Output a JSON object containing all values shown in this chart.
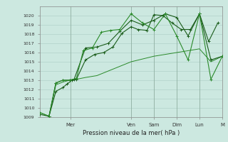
{
  "xlabel": "Pression niveau de la mer( hPa )",
  "background_color": "#cce8e0",
  "grid_color": "#aaccc4",
  "line_color_dark": "#1a5c1a",
  "line_color_light": "#2a8a2a",
  "ylim": [
    1009,
    1021
  ],
  "xlim": [
    0,
    8.0
  ],
  "yticks": [
    1009,
    1010,
    1011,
    1012,
    1013,
    1014,
    1015,
    1016,
    1017,
    1018,
    1019,
    1020
  ],
  "day_labels": [
    "",
    "Mer",
    "",
    "Ven",
    "Sam",
    "Dim",
    "Lun",
    "",
    "M"
  ],
  "day_positions": [
    0,
    1.33,
    2.67,
    4.0,
    5.0,
    6.0,
    7.0,
    7.5,
    8.0
  ],
  "series1_x": [
    0,
    0.4,
    0.7,
    1.0,
    1.2,
    1.4,
    1.6,
    2.0,
    2.4,
    2.8,
    3.2,
    3.6,
    4.0,
    4.3,
    4.7,
    5.0,
    5.4,
    5.8,
    6.2,
    6.6,
    7.0,
    7.4,
    7.8
  ],
  "series1_y": [
    1009.3,
    1009.1,
    1011.8,
    1012.2,
    1012.6,
    1013.0,
    1013.1,
    1015.2,
    1015.8,
    1016.0,
    1016.6,
    1018.1,
    1018.8,
    1018.5,
    1018.4,
    1020.1,
    1020.0,
    1019.2,
    1018.5,
    1018.5,
    1020.2,
    1017.2,
    1019.2
  ],
  "series2_x": [
    0,
    0.4,
    0.7,
    1.0,
    1.3,
    1.6,
    2.0,
    2.5,
    3.0,
    3.5,
    4.0,
    4.5,
    5.0,
    5.5,
    6.0,
    6.5,
    7.0,
    7.5,
    8.0
  ],
  "series2_y": [
    1009.5,
    1009.1,
    1012.5,
    1012.8,
    1013.0,
    1013.1,
    1013.3,
    1013.5,
    1014.0,
    1014.5,
    1015.0,
    1015.3,
    1015.6,
    1015.8,
    1016.0,
    1016.2,
    1016.4,
    1015.0,
    1015.6
  ],
  "series3_x": [
    0,
    0.4,
    0.7,
    1.0,
    1.3,
    1.6,
    1.9,
    2.3,
    2.7,
    3.1,
    3.5,
    4.0,
    4.5,
    5.0,
    5.5,
    6.0,
    6.5,
    7.0,
    7.5,
    8.0
  ],
  "series3_y": [
    1009.5,
    1009.1,
    1012.7,
    1013.0,
    1013.0,
    1013.2,
    1016.2,
    1016.5,
    1018.2,
    1018.4,
    1018.5,
    1020.2,
    1019.2,
    1018.5,
    1020.2,
    1017.8,
    1015.2,
    1020.2,
    1013.1,
    1015.6
  ],
  "series4_x": [
    0.4,
    0.7,
    1.0,
    1.3,
    1.5,
    2.0,
    2.5,
    3.0,
    3.5,
    4.0,
    4.5,
    5.0,
    5.5,
    6.0,
    6.5,
    7.0,
    7.5,
    8.0
  ],
  "series4_y": [
    1009.1,
    1012.7,
    1013.0,
    1013.0,
    1013.1,
    1016.5,
    1016.6,
    1017.0,
    1018.3,
    1019.5,
    1019.0,
    1019.5,
    1020.2,
    1019.8,
    1017.8,
    1020.2,
    1015.2,
    1015.6
  ]
}
